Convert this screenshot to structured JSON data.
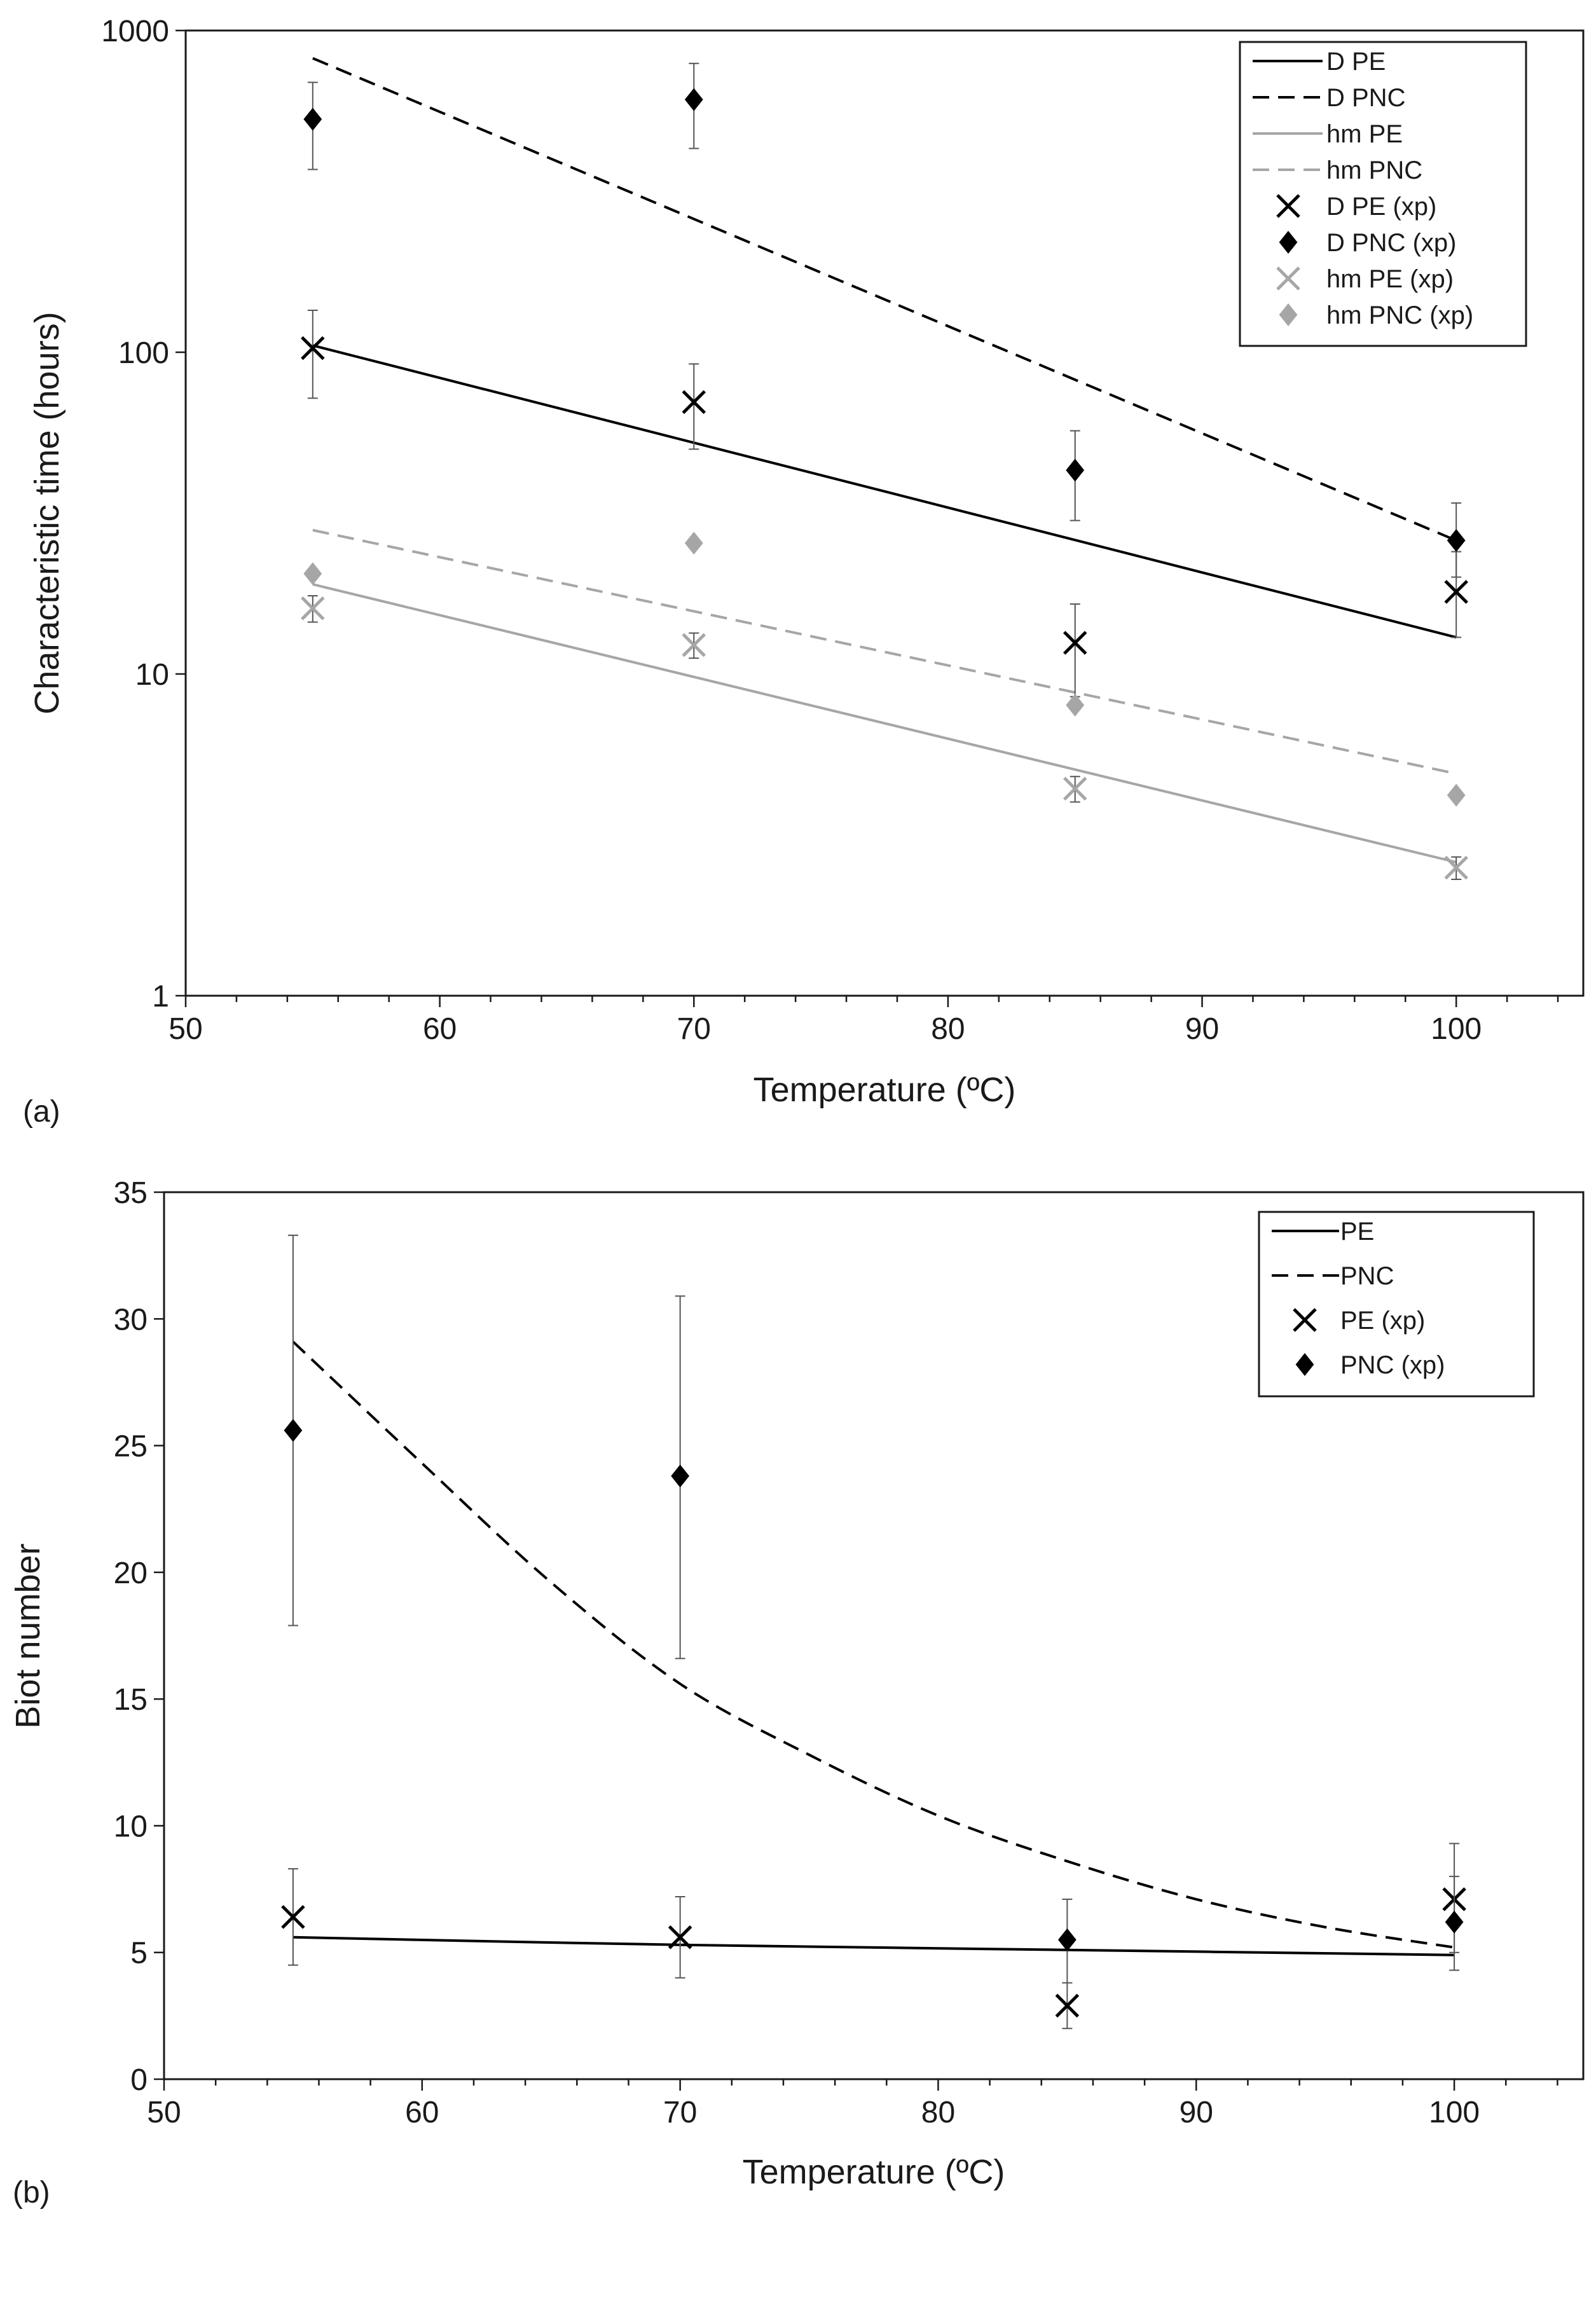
{
  "chart_data": [
    {
      "type": "line",
      "panel_label": "(a)",
      "xlabel": "Temperature (ºC)",
      "ylabel": "Characteristic time (hours)",
      "xlim": [
        50,
        105
      ],
      "ylim": [
        1,
        1000
      ],
      "yscale": "log",
      "xticks": [
        50,
        60,
        70,
        80,
        90,
        100
      ],
      "yticks": [
        1,
        10,
        100,
        1000
      ],
      "xtick_labels": [
        "50",
        "60",
        "70",
        "80",
        "90",
        "100"
      ],
      "ytick_labels": [
        "1",
        "10",
        "100",
        "1000"
      ],
      "grid": false,
      "legend_position": "top-right",
      "legend": [
        "D PE",
        "D PNC",
        "hm PE",
        "hm PNC",
        "D PE (xp)",
        "D PNC (xp)",
        "hm PE (xp)",
        "hm PNC (xp)"
      ],
      "series": [
        {
          "name": "D PE",
          "kind": "line",
          "style": "solid",
          "color": "#000000",
          "x": [
            55,
            100
          ],
          "y": [
            105,
            13
          ]
        },
        {
          "name": "D PNC",
          "kind": "line",
          "style": "dashed",
          "color": "#000000",
          "x": [
            55,
            100
          ],
          "y": [
            820,
            26
          ]
        },
        {
          "name": "hm PE",
          "kind": "line",
          "style": "solid",
          "color": "#a6a6a6",
          "x": [
            55,
            100
          ],
          "y": [
            19,
            2.6
          ]
        },
        {
          "name": "hm PNC",
          "kind": "line",
          "style": "dashed",
          "color": "#a6a6a6",
          "x": [
            55,
            100
          ],
          "y": [
            28,
            4.9
          ]
        },
        {
          "name": "D PE (xp)",
          "kind": "marker",
          "marker": "x",
          "color": "#000000",
          "x": [
            55,
            70,
            85,
            100
          ],
          "y": [
            103,
            70,
            12.5,
            18
          ],
          "err_low": [
            72,
            50,
            8.5,
            13
          ],
          "err_high": [
            135,
            92,
            16.5,
            24
          ]
        },
        {
          "name": "D PNC (xp)",
          "kind": "marker",
          "marker": "diamond",
          "color": "#000000",
          "x": [
            55,
            70,
            85,
            100
          ],
          "y": [
            530,
            610,
            43,
            26
          ],
          "err_low": [
            370,
            430,
            30,
            20
          ],
          "err_high": [
            690,
            790,
            57,
            34
          ]
        },
        {
          "name": "hm PE (xp)",
          "kind": "marker",
          "marker": "x",
          "color": "#a6a6a6",
          "x": [
            55,
            70,
            85,
            100
          ],
          "y": [
            16,
            12.3,
            4.4,
            2.5
          ],
          "err_low": [
            14.5,
            11.2,
            4.0,
            2.3
          ],
          "err_high": [
            17.5,
            13.4,
            4.8,
            2.7
          ]
        },
        {
          "name": "hm PNC (xp)",
          "kind": "marker",
          "marker": "diamond",
          "color": "#a6a6a6",
          "x": [
            55,
            70,
            85,
            100
          ],
          "y": [
            20.5,
            25.5,
            8,
            4.2
          ],
          "err_low": null,
          "err_high": null
        }
      ]
    },
    {
      "type": "line",
      "panel_label": "(b)",
      "xlabel": "Temperature (ºC)",
      "ylabel": "Biot number",
      "xlim": [
        50,
        105
      ],
      "ylim": [
        0,
        35
      ],
      "yscale": "linear",
      "xticks": [
        50,
        60,
        70,
        80,
        90,
        100
      ],
      "yticks": [
        0,
        5,
        10,
        15,
        20,
        25,
        30,
        35
      ],
      "xtick_labels": [
        "50",
        "60",
        "70",
        "80",
        "90",
        "100"
      ],
      "ytick_labels": [
        "0",
        "5",
        "10",
        "15",
        "20",
        "25",
        "30",
        "35"
      ],
      "grid": false,
      "legend_position": "top-right",
      "legend": [
        "PE",
        "PNC",
        "PE (xp)",
        "PNC (xp)"
      ],
      "series": [
        {
          "name": "PE",
          "kind": "line",
          "style": "solid",
          "color": "#000000",
          "x": [
            55,
            70,
            85,
            100
          ],
          "y": [
            5.6,
            5.3,
            5.1,
            4.9
          ]
        },
        {
          "name": "PNC",
          "kind": "line",
          "style": "dashed",
          "color": "#000000",
          "x": [
            55,
            60,
            65,
            70,
            75,
            80,
            85,
            90,
            95,
            100
          ],
          "y": [
            29.1,
            24.3,
            19.6,
            15.6,
            12.8,
            10.4,
            8.6,
            7.1,
            6.0,
            5.2
          ]
        },
        {
          "name": "PE (xp)",
          "kind": "marker",
          "marker": "x",
          "color": "#000000",
          "x": [
            55,
            70,
            85,
            100
          ],
          "y": [
            6.4,
            5.6,
            2.9,
            7.1
          ],
          "err_low": [
            4.5,
            4.0,
            2.0,
            5.0
          ],
          "err_high": [
            8.3,
            7.2,
            3.8,
            9.3
          ]
        },
        {
          "name": "PNC (xp)",
          "kind": "marker",
          "marker": "diamond",
          "color": "#000000",
          "x": [
            55,
            70,
            85,
            100
          ],
          "y": [
            25.6,
            23.8,
            5.5,
            6.2
          ],
          "err_low": [
            17.9,
            16.6,
            3.8,
            4.3
          ],
          "err_high": [
            33.3,
            30.9,
            7.1,
            8.0
          ]
        }
      ]
    }
  ]
}
